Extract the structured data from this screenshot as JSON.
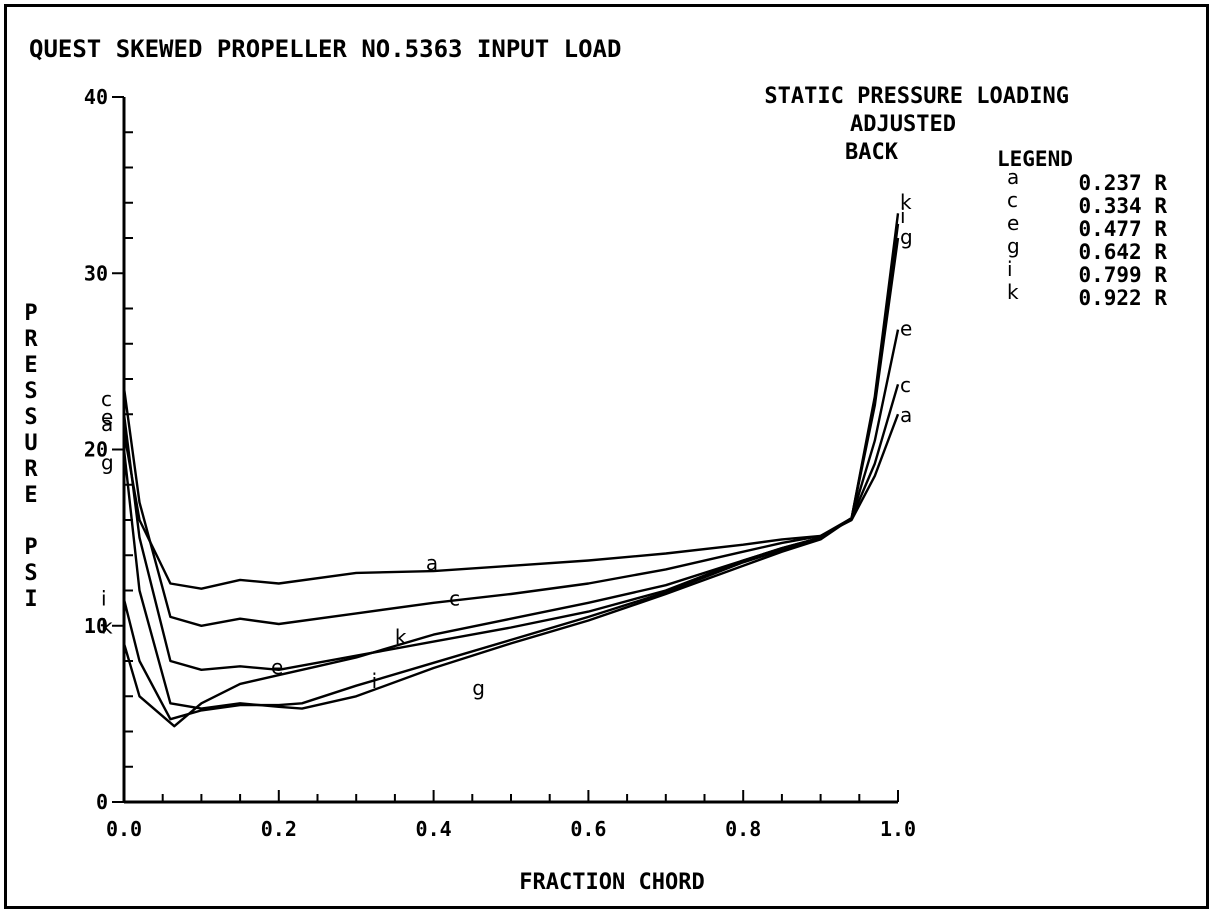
{
  "chart_data": {
    "type": "line",
    "title": "QUEST SKEWED PROPELLER NO.5363 INPUT LOAD",
    "subtitle_lines": [
      "STATIC PRESSURE LOADING",
      "ADJUSTED",
      "BACK"
    ],
    "xlabel": "FRACTION CHORD",
    "ylabel": "PRESSURE PSI",
    "ylabel_letters": [
      "P",
      "R",
      "E",
      "S",
      "S",
      "U",
      "R",
      "E",
      "",
      "P",
      "S",
      "I"
    ],
    "xlim": [
      0.0,
      1.0
    ],
    "ylim": [
      0,
      40
    ],
    "x_ticks": [
      "0.0",
      "0.2",
      "0.4",
      "0.6",
      "0.8",
      "1.0"
    ],
    "y_ticks": [
      "0",
      "10",
      "20",
      "30",
      "40"
    ],
    "grid": false,
    "legend_title": "LEGEND",
    "legend_position": "top-right",
    "series": [
      {
        "name": "0.237 R",
        "tag": "a",
        "x": [
          0.0,
          0.02,
          0.06,
          0.1,
          0.15,
          0.2,
          0.3,
          0.4,
          0.5,
          0.6,
          0.7,
          0.8,
          0.85,
          0.9,
          0.94,
          0.97,
          1.0
        ],
        "y": [
          21.0,
          16.0,
          12.4,
          12.1,
          12.6,
          12.4,
          13.0,
          13.1,
          13.4,
          13.7,
          14.1,
          14.6,
          14.9,
          15.1,
          16.0,
          18.5,
          22.0
        ],
        "left_label_y": 21.4,
        "mid_label": [
          0.39,
          13.5
        ],
        "right_label_y": 21.9
      },
      {
        "name": "0.334 R",
        "tag": "c",
        "x": [
          0.0,
          0.02,
          0.06,
          0.1,
          0.15,
          0.2,
          0.3,
          0.4,
          0.5,
          0.6,
          0.7,
          0.8,
          0.85,
          0.9,
          0.94,
          0.97,
          1.0
        ],
        "y": [
          23.5,
          17.0,
          10.5,
          10.0,
          10.4,
          10.1,
          10.7,
          11.3,
          11.8,
          12.4,
          13.2,
          14.2,
          14.7,
          15.1,
          16.1,
          19.2,
          23.7
        ],
        "left_label_y": 22.8,
        "mid_label": [
          0.42,
          11.5
        ],
        "right_label_y": 23.6
      },
      {
        "name": "0.477 R",
        "tag": "e",
        "x": [
          0.0,
          0.02,
          0.06,
          0.1,
          0.15,
          0.2,
          0.3,
          0.4,
          0.5,
          0.6,
          0.7,
          0.8,
          0.85,
          0.9,
          0.94,
          0.97,
          1.0
        ],
        "y": [
          22.0,
          15.0,
          8.0,
          7.5,
          7.7,
          7.5,
          8.3,
          9.1,
          9.9,
          10.8,
          12.0,
          13.7,
          14.4,
          15.0,
          16.1,
          20.5,
          26.8
        ],
        "left_label_y": 21.8,
        "mid_label": [
          0.19,
          7.6
        ],
        "right_label_y": 26.8
      },
      {
        "name": "0.642 R",
        "tag": "g",
        "x": [
          0.0,
          0.02,
          0.06,
          0.1,
          0.15,
          0.2,
          0.23,
          0.3,
          0.4,
          0.5,
          0.6,
          0.7,
          0.8,
          0.85,
          0.9,
          0.94,
          0.97,
          1.0
        ],
        "y": [
          20.0,
          12.0,
          5.6,
          5.3,
          5.6,
          5.4,
          5.3,
          6.0,
          7.6,
          9.0,
          10.3,
          11.8,
          13.4,
          14.2,
          14.9,
          16.1,
          22.5,
          32.0
        ],
        "left_label_y": 19.2,
        "mid_label": [
          0.45,
          6.4
        ],
        "right_label_y": 32.0
      },
      {
        "name": "0.799 R",
        "tag": "i",
        "x": [
          0.0,
          0.02,
          0.06,
          0.1,
          0.15,
          0.2,
          0.23,
          0.3,
          0.4,
          0.5,
          0.6,
          0.7,
          0.8,
          0.85,
          0.9,
          0.94,
          0.97,
          1.0
        ],
        "y": [
          11.5,
          8.0,
          4.7,
          5.2,
          5.5,
          5.5,
          5.6,
          6.6,
          7.9,
          9.2,
          10.5,
          11.9,
          13.6,
          14.3,
          15.0,
          16.1,
          22.8,
          32.8
        ],
        "left_label_y": 11.5,
        "mid_label": [
          0.32,
          6.8
        ],
        "right_label_y": 33.2
      },
      {
        "name": "0.922 R",
        "tag": "k",
        "x": [
          0.0,
          0.02,
          0.065,
          0.1,
          0.15,
          0.2,
          0.25,
          0.3,
          0.4,
          0.5,
          0.6,
          0.7,
          0.8,
          0.85,
          0.9,
          0.94,
          0.97,
          1.0
        ],
        "y": [
          9.0,
          6.0,
          4.3,
          5.6,
          6.7,
          7.2,
          7.7,
          8.2,
          9.5,
          10.4,
          11.3,
          12.3,
          13.7,
          14.4,
          15.0,
          16.1,
          23.0,
          33.4
        ],
        "left_label_y": 9.9,
        "mid_label": [
          0.35,
          9.3
        ],
        "right_label_y": 34.0
      }
    ]
  }
}
